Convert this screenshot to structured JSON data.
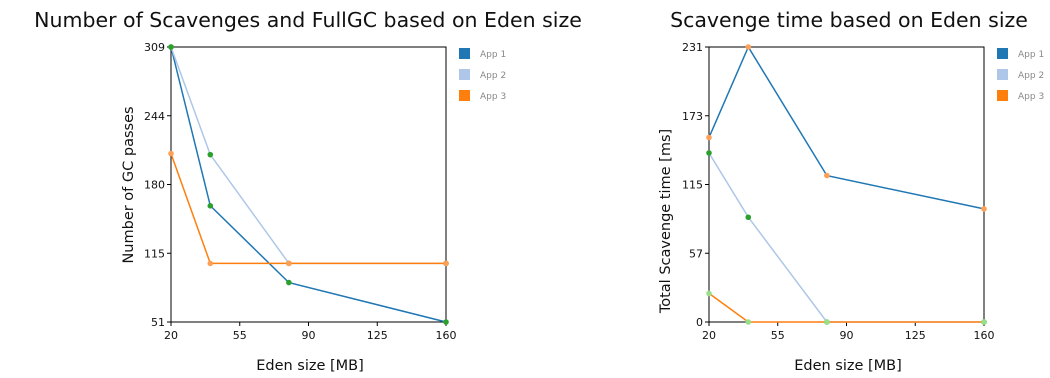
{
  "chart_data": [
    {
      "type": "line",
      "title": "Number of Scavenges and FullGC based on Eden size",
      "xlabel": "Eden size [MB]",
      "ylabel": "Number of GC passes",
      "xlim": [
        20,
        160
      ],
      "ylim": [
        51,
        309
      ],
      "xticks": [
        "20",
        "55",
        "90",
        "125",
        "160"
      ],
      "yticks": [
        "51",
        "115",
        "180",
        "244",
        "309"
      ],
      "grid": false,
      "legend": "right",
      "series": [
        {
          "name": "App 1",
          "color": "#1f77b4",
          "marker_color": "#2ca02c",
          "x": [
            20,
            40,
            80,
            160
          ],
          "y": [
            309,
            160,
            88,
            51
          ]
        },
        {
          "name": "App 2",
          "color": "#aec7e8",
          "marker_color": "#2ca02c",
          "x": [
            20,
            40,
            80,
            160
          ],
          "y": [
            309,
            208,
            106,
            106
          ]
        },
        {
          "name": "App 3",
          "color": "#ff7f0e",
          "marker_color": "#ff9f55",
          "x": [
            20,
            40,
            80,
            160
          ],
          "y": [
            209,
            106,
            106,
            106
          ]
        }
      ]
    },
    {
      "type": "line",
      "title": "Scavenge time based on Eden size",
      "xlabel": "Eden size [MB]",
      "ylabel": "Total Scavenge time [ms]",
      "xlim": [
        20,
        160
      ],
      "ylim": [
        0,
        231
      ],
      "xticks": [
        "20",
        "55",
        "90",
        "125",
        "160"
      ],
      "yticks": [
        "0",
        "57",
        "115",
        "173",
        "231"
      ],
      "grid": false,
      "legend": "right",
      "series": [
        {
          "name": "App 1",
          "color": "#1f77b4",
          "marker_color": "#ff9f55",
          "x": [
            20,
            40,
            80,
            160
          ],
          "y": [
            155,
            231,
            123,
            95
          ]
        },
        {
          "name": "App 2",
          "color": "#aec7e8",
          "marker_color": "#2ca02c",
          "x": [
            20,
            40,
            80,
            160
          ],
          "y": [
            142,
            88,
            0,
            0
          ]
        },
        {
          "name": "App 3",
          "color": "#ff7f0e",
          "marker_color": "#98df8a",
          "x": [
            20,
            40,
            80,
            160
          ],
          "y": [
            24,
            0,
            0,
            0
          ]
        }
      ]
    }
  ]
}
